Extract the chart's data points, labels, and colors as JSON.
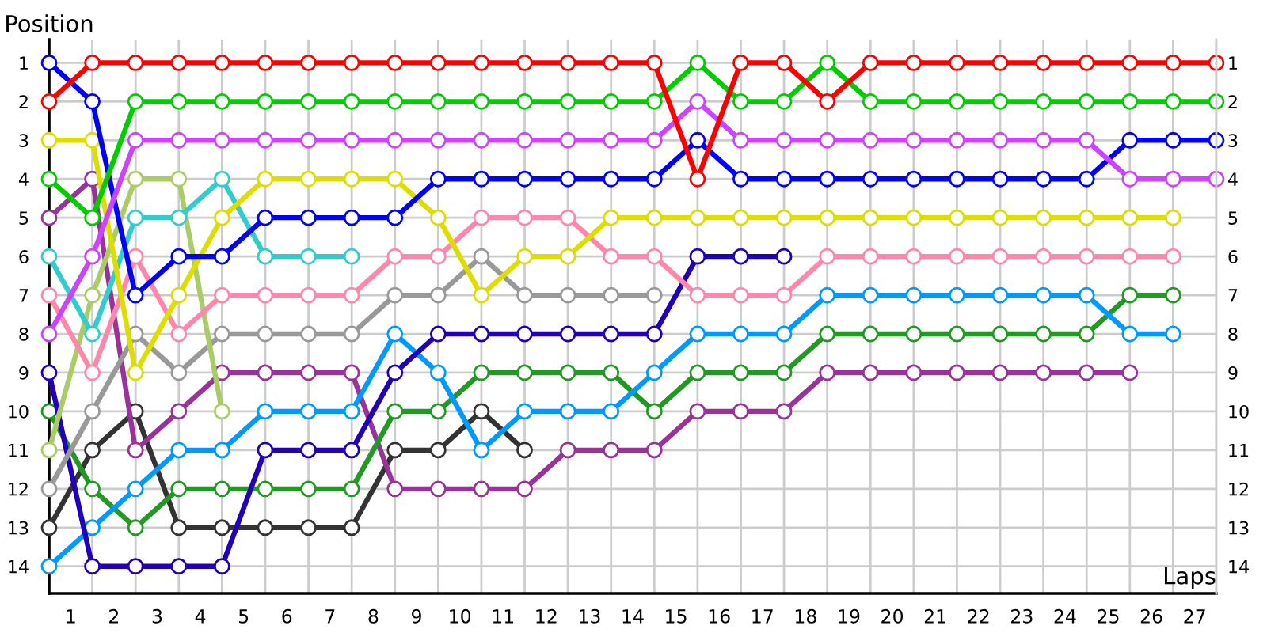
{
  "chart_data": {
    "type": "line",
    "xlabel": "Laps",
    "ylabel": "Position",
    "x": [
      0,
      1,
      2,
      3,
      4,
      5,
      6,
      7,
      8,
      9,
      10,
      11,
      12,
      13,
      14,
      15,
      16,
      17,
      18,
      19,
      20,
      21,
      22,
      23,
      24,
      25,
      26,
      27
    ],
    "series": [
      {
        "color": "#ff0000",
        "values": [
          2,
          1,
          1,
          1,
          1,
          1,
          1,
          1,
          1,
          1,
          1,
          1,
          1,
          1,
          1,
          4,
          1,
          1,
          2,
          1,
          1,
          1,
          1,
          1,
          1,
          1,
          1,
          1
        ]
      },
      {
        "color": "#00cc00",
        "values": [
          4,
          5,
          2,
          2,
          2,
          2,
          2,
          2,
          2,
          2,
          2,
          2,
          2,
          2,
          2,
          1,
          2,
          2,
          1,
          2,
          2,
          2,
          2,
          2,
          2,
          2,
          2,
          2
        ]
      },
      {
        "color": "#cc44ff",
        "values": [
          8,
          6,
          3,
          3,
          3,
          3,
          3,
          3,
          3,
          3,
          3,
          3,
          3,
          3,
          3,
          2,
          3,
          3,
          3,
          3,
          3,
          3,
          3,
          3,
          3,
          4,
          4,
          4
        ]
      },
      {
        "color": "#0000ff",
        "values": [
          1,
          2,
          7,
          6,
          6,
          5,
          5,
          5,
          5,
          4,
          4,
          4,
          4,
          4,
          4,
          3,
          4,
          4,
          4,
          4,
          4,
          4,
          4,
          4,
          4,
          3,
          3,
          3
        ]
      },
      {
        "color": "#dddd00",
        "values": [
          3,
          3,
          9,
          7,
          5,
          4,
          4,
          4,
          4,
          5,
          7,
          6,
          6,
          5,
          5,
          5,
          5,
          5,
          5,
          5,
          5,
          5,
          5,
          5,
          5,
          5,
          5,
          null
        ]
      },
      {
        "color": "#ff88aa",
        "values": [
          7,
          9,
          6,
          8,
          7,
          7,
          7,
          7,
          6,
          6,
          5,
          5,
          5,
          6,
          6,
          7,
          7,
          7,
          6,
          6,
          6,
          6,
          6,
          6,
          6,
          6,
          6,
          null
        ]
      },
      {
        "color": "#33cccc",
        "values": [
          6,
          8,
          5,
          5,
          4,
          6,
          6,
          6,
          null,
          null,
          null,
          null,
          null,
          null,
          null,
          null,
          null,
          null,
          null,
          null,
          null,
          null,
          null,
          null,
          null,
          null,
          null,
          null
        ]
      },
      {
        "color": "#aacc66",
        "values": [
          11,
          7,
          4,
          4,
          10,
          null,
          null,
          null,
          null,
          null,
          null,
          null,
          null,
          null,
          null,
          null,
          null,
          null,
          null,
          null,
          null,
          null,
          null,
          null,
          null,
          null,
          null,
          null
        ]
      },
      {
        "color": "#999999",
        "values": [
          12,
          10,
          8,
          9,
          8,
          8,
          8,
          8,
          7,
          7,
          6,
          7,
          7,
          7,
          7,
          null,
          null,
          null,
          null,
          null,
          null,
          null,
          null,
          null,
          null,
          null,
          null,
          null
        ]
      },
      {
        "color": "#2200bb",
        "values": [
          9,
          14,
          14,
          14,
          14,
          11,
          11,
          11,
          9,
          8,
          8,
          8,
          8,
          8,
          8,
          6,
          6,
          6,
          null,
          null,
          null,
          null,
          null,
          null,
          null,
          null,
          null,
          null
        ]
      },
      {
        "color": "#0099ff",
        "values": [
          14,
          13,
          12,
          11,
          11,
          10,
          10,
          10,
          8,
          9,
          11,
          10,
          10,
          10,
          9,
          8,
          8,
          8,
          7,
          7,
          7,
          7,
          7,
          7,
          7,
          8,
          8,
          null
        ]
      },
      {
        "color": "#229922",
        "values": [
          10,
          12,
          13,
          12,
          12,
          12,
          12,
          12,
          10,
          10,
          9,
          9,
          9,
          9,
          10,
          9,
          9,
          9,
          8,
          8,
          8,
          8,
          8,
          8,
          8,
          7,
          7,
          null
        ]
      },
      {
        "color": "#993399",
        "values": [
          5,
          4,
          11,
          10,
          9,
          9,
          9,
          9,
          12,
          12,
          12,
          12,
          11,
          11,
          11,
          10,
          10,
          10,
          9,
          9,
          9,
          9,
          9,
          9,
          9,
          9,
          null,
          null
        ]
      },
      {
        "color": "#333333",
        "values": [
          13,
          11,
          10,
          13,
          13,
          13,
          13,
          13,
          11,
          11,
          10,
          11,
          null,
          null,
          null,
          null,
          null,
          null,
          null,
          null,
          null,
          null,
          null,
          null,
          null,
          null,
          null,
          null
        ]
      }
    ],
    "xlim": [
      0,
      27
    ],
    "xticks": [
      {
        "value": 0,
        "label": null
      },
      {
        "value": 1,
        "label": null
      },
      {
        "value": 2,
        "label": null
      },
      {
        "value": 3,
        "label": null
      },
      {
        "value": 4,
        "label": null
      },
      {
        "value": 5,
        "label": null
      },
      {
        "value": 6,
        "label": null
      },
      {
        "value": 7,
        "label": null
      },
      {
        "value": 8,
        "label": null
      },
      {
        "value": 9,
        "label": null
      },
      {
        "value": 10,
        "label": null
      },
      {
        "value": 11,
        "label": null
      },
      {
        "value": 12,
        "label": null
      },
      {
        "value": 13,
        "label": null
      },
      {
        "value": 14,
        "label": null
      },
      {
        "value": 15,
        "label": null
      },
      {
        "value": 16,
        "label": null
      },
      {
        "value": 17,
        "label": null
      },
      {
        "value": 18,
        "label": null
      },
      {
        "value": 19,
        "label": null
      },
      {
        "value": 20,
        "label": null
      },
      {
        "value": 21,
        "label": null
      },
      {
        "value": 22,
        "label": null
      },
      {
        "value": 23,
        "label": null
      },
      {
        "value": 24,
        "label": null
      },
      {
        "value": 25,
        "label": null
      },
      {
        "value": 26,
        "label": null
      },
      {
        "value": 27,
        "label": null
      },
      {
        "value": 0.5,
        "label": "1"
      },
      {
        "value": 1.5,
        "label": "2"
      },
      {
        "value": 2.5,
        "label": "3"
      },
      {
        "value": 3.5,
        "label": "4"
      },
      {
        "value": 4.5,
        "label": "5"
      },
      {
        "value": 5.5,
        "label": "6"
      },
      {
        "value": 6.5,
        "label": "7"
      },
      {
        "value": 7.5,
        "label": "8"
      },
      {
        "value": 8.5,
        "label": "9"
      },
      {
        "value": 9.5,
        "label": "10"
      },
      {
        "value": 10.5,
        "label": "11"
      },
      {
        "value": 11.5,
        "label": "12"
      },
      {
        "value": 12.5,
        "label": "13"
      },
      {
        "value": 13.5,
        "label": "14"
      },
      {
        "value": 14.5,
        "label": "15"
      },
      {
        "value": 15.5,
        "label": "16"
      },
      {
        "value": 16.5,
        "label": "17"
      },
      {
        "value": 17.5,
        "label": "18"
      },
      {
        "value": 18.5,
        "label": "19"
      },
      {
        "value": 19.5,
        "label": "20"
      },
      {
        "value": 20.5,
        "label": "21"
      },
      {
        "value": 21.5,
        "label": "22"
      },
      {
        "value": 22.5,
        "label": "23"
      },
      {
        "value": 23.5,
        "label": "24"
      },
      {
        "value": 24.5,
        "label": "25"
      },
      {
        "value": 25.5,
        "label": "26"
      },
      {
        "value": 26.5,
        "label": "27"
      }
    ],
    "ylim": [
      14.7,
      0.4
    ],
    "yticks": [
      1,
      2,
      3,
      4,
      5,
      6,
      7,
      8,
      9,
      10,
      11,
      12,
      13,
      14
    ],
    "y2lim": [
      14.7,
      0.4
    ],
    "y2ticks": [
      1,
      2,
      3,
      4,
      5,
      6,
      7,
      8,
      9,
      10,
      11,
      12,
      13,
      14
    ],
    "grid": true,
    "marker": "circle",
    "line_style": "solid"
  }
}
